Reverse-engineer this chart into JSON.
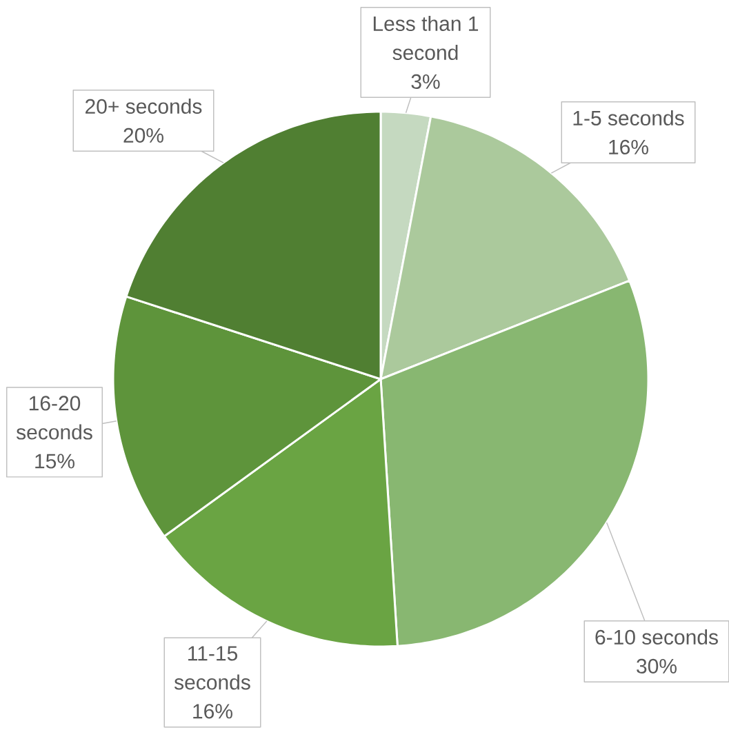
{
  "chart_data": {
    "type": "pie",
    "categories": [
      "Less than 1 second",
      "1-5 seconds",
      "6-10 seconds",
      "11-15 seconds",
      "16-20 seconds",
      "20+ seconds"
    ],
    "values": [
      3,
      16,
      30,
      16,
      15,
      20
    ],
    "colors": [
      "#c5d9c0",
      "#abc99c",
      "#88b771",
      "#6aa443",
      "#5e943b",
      "#507f32"
    ],
    "value_labels": [
      "3%",
      "16%",
      "30%",
      "16%",
      "15%",
      "20%"
    ]
  }
}
